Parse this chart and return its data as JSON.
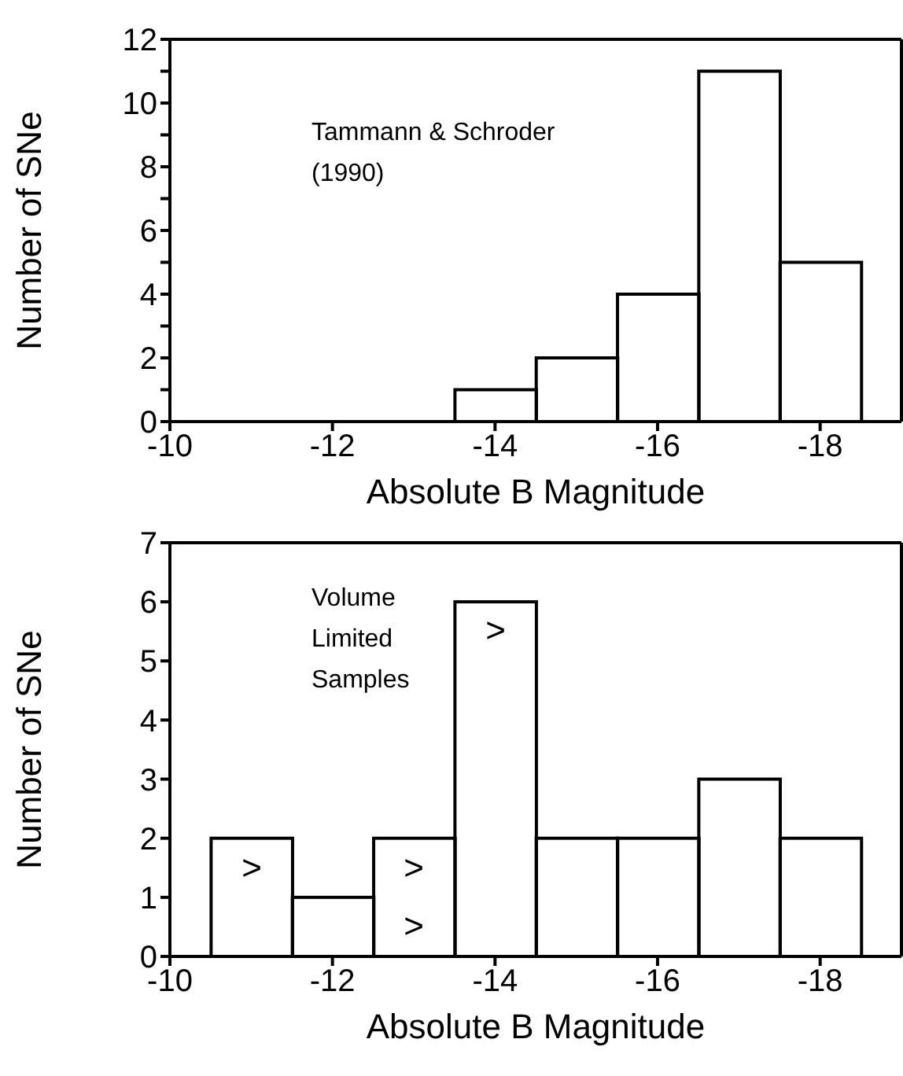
{
  "chart_data": [
    {
      "type": "histogram",
      "xlabel": "Absolute B Magnitude",
      "ylabel": "Number of SNe",
      "bins": [
        -13.5,
        -14.5,
        -15.5,
        -16.5,
        -17.5,
        -18.5
      ],
      "values": [
        1,
        2,
        4,
        11,
        5
      ],
      "color": "#000000",
      "xlim": [
        -10,
        -19
      ],
      "xticks": [
        -10,
        -12,
        -14,
        -16,
        -18
      ],
      "ylim": [
        0,
        12
      ],
      "yticks": [
        0,
        {
          "value": 1,
          "label": null
        },
        2,
        {
          "value": 3,
          "label": null
        },
        4,
        {
          "value": 5,
          "label": null
        },
        6,
        {
          "value": 7,
          "label": null
        },
        8,
        {
          "value": 9,
          "label": null
        },
        10,
        {
          "value": 11,
          "label": null
        },
        12
      ],
      "annotations": [
        "Tammann & Schroder (1990)"
      ]
    },
    {
      "type": "histogram",
      "xlabel": "Absolute B Magnitude",
      "ylabel": "Number of SNe",
      "bins": [
        -10.5,
        -11.5,
        -12.5,
        -13.5,
        -14.5,
        -15.5,
        -16.5,
        -17.5,
        -18.5
      ],
      "values": [
        2,
        1,
        2,
        6,
        2,
        2,
        3,
        2
      ],
      "color": "#000000",
      "xlim": [
        -10,
        -19
      ],
      "xticks": [
        -10,
        -12,
        -14,
        -16,
        -18
      ],
      "ylim": [
        0,
        7
      ],
      "yticks": [
        0,
        1,
        2,
        3,
        4,
        5,
        6,
        7
      ],
      "annotations": [
        "Volume Limited Samples",
        ">",
        ">",
        ">",
        ">"
      ]
    }
  ]
}
